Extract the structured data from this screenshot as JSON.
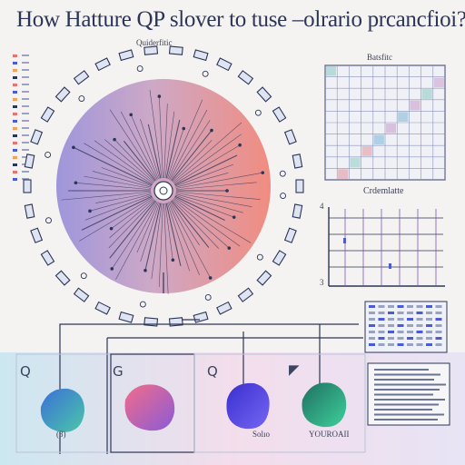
{
  "title": "How Hatture QP slover to tuse –olrario prcancfioi?",
  "circle": {
    "label": "Quiderfitic"
  },
  "grid_panel": {
    "label": "Batsfitc"
  },
  "line_chart": {
    "label": "Crdemlatte",
    "axis_top": "4",
    "axis_bottom": "3"
  },
  "bottom_blocks": [
    {
      "glyph": "Q",
      "caption": "(3)",
      "color_a": "#3b6fd8",
      "color_b": "#4bc7a8"
    },
    {
      "glyph": "G",
      "caption": "",
      "color_a": "#f26c8a",
      "color_b": "#8a5bd6"
    },
    {
      "glyph": "Q",
      "caption": "Solıo",
      "color_a": "#4b3ce0",
      "color_b": "#6b5bf0"
    },
    {
      "glyph": "◤",
      "caption": "YOUROAII",
      "color_a": "#1f7f6a",
      "color_b": "#41c79a"
    }
  ],
  "colors": {
    "accent_blue": "#4a5bd4",
    "accent_red": "#e8746f",
    "frame": "#2c3555"
  }
}
